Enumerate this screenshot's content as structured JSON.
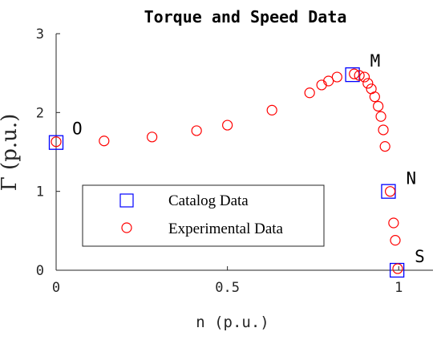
{
  "chart_data": {
    "type": "scatter",
    "title": "Torque and Speed Data",
    "xlabel": "n (p.u.)",
    "ylabel": "Γ (p.u.)",
    "xlim": [
      0,
      1.1
    ],
    "ylim": [
      0,
      3
    ],
    "x_ticks": [
      "0",
      "0.5",
      "1"
    ],
    "y_ticks": [
      "0",
      "1",
      "2",
      "3"
    ],
    "legend_position": "lower-left",
    "series": [
      {
        "name": "Catalog Data",
        "marker": "square",
        "color": "#0000ff",
        "points": [
          [
            0,
            1.62
          ],
          [
            0.865,
            2.48
          ],
          [
            0.97,
            1.0
          ],
          [
            0.995,
            0.0
          ]
        ]
      },
      {
        "name": "Experimental Data",
        "marker": "circle",
        "color": "#ff0000",
        "points": [
          [
            0.0,
            1.63
          ],
          [
            0.14,
            1.64
          ],
          [
            0.28,
            1.69
          ],
          [
            0.41,
            1.77
          ],
          [
            0.5,
            1.84
          ],
          [
            0.63,
            2.03
          ],
          [
            0.74,
            2.25
          ],
          [
            0.775,
            2.35
          ],
          [
            0.795,
            2.4
          ],
          [
            0.82,
            2.45
          ],
          [
            0.87,
            2.49
          ],
          [
            0.885,
            2.47
          ],
          [
            0.9,
            2.45
          ],
          [
            0.91,
            2.37
          ],
          [
            0.92,
            2.3
          ],
          [
            0.93,
            2.2
          ],
          [
            0.94,
            2.08
          ],
          [
            0.948,
            1.95
          ],
          [
            0.955,
            1.78
          ],
          [
            0.96,
            1.57
          ],
          [
            0.975,
            1.0
          ],
          [
            0.985,
            0.6
          ],
          [
            0.99,
            0.38
          ],
          [
            0.997,
            0.02
          ]
        ]
      }
    ],
    "annotations": [
      {
        "text": "O",
        "x": 0,
        "y": 1.62
      },
      {
        "text": "M",
        "x": 0.865,
        "y": 2.48
      },
      {
        "text": "N",
        "x": 0.97,
        "y": 1.0
      },
      {
        "text": "S",
        "x": 0.995,
        "y": 0.0
      }
    ]
  }
}
